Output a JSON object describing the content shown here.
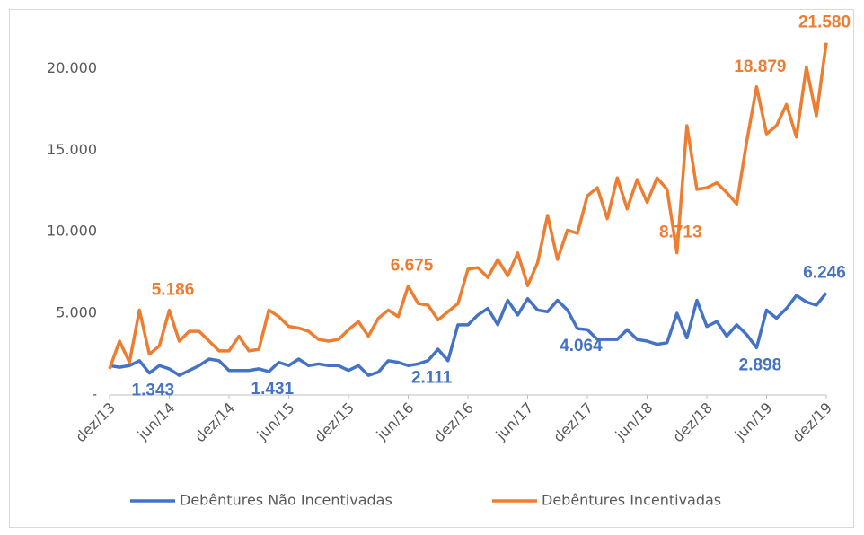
{
  "chart_data": {
    "type": "line",
    "categories": [
      "dez/13",
      null,
      null,
      null,
      null,
      null,
      "jun/14",
      null,
      null,
      null,
      null,
      null,
      "dez/14",
      null,
      null,
      null,
      null,
      null,
      "jun/15",
      null,
      null,
      null,
      null,
      null,
      "dez/15",
      null,
      null,
      null,
      null,
      null,
      "jun/16",
      null,
      null,
      null,
      null,
      null,
      "dez/16",
      null,
      null,
      null,
      null,
      null,
      "jun/17",
      null,
      null,
      null,
      null,
      null,
      "dez/17",
      null,
      null,
      null,
      null,
      null,
      "jun/18",
      null,
      null,
      null,
      null,
      null,
      "dez/18",
      null,
      null,
      null,
      null,
      null,
      "jun/19",
      null,
      null,
      null,
      null,
      null,
      "dez/19"
    ],
    "series": [
      {
        "name": "Debêntures Não Incentivadas",
        "color": "#4472c4",
        "values": [
          1800,
          1700,
          1800,
          2100,
          1343,
          1800,
          1600,
          1200,
          1500,
          1800,
          2200,
          2100,
          1500,
          1500,
          1500,
          1600,
          1431,
          2000,
          1800,
          2200,
          1800,
          1900,
          1800,
          1800,
          1500,
          1800,
          1200,
          1400,
          2100,
          2000,
          1800,
          1900,
          2111,
          2800,
          2100,
          4300,
          4300,
          4900,
          5300,
          4300,
          5800,
          4900,
          5900,
          5200,
          5100,
          5800,
          5200,
          4064,
          4000,
          3400,
          3400,
          3400,
          4000,
          3400,
          3300,
          3100,
          3200,
          5000,
          3500,
          5800,
          4200,
          4500,
          3600,
          4300,
          3700,
          2898,
          5200,
          4700,
          5300,
          6100,
          5700,
          5500,
          6246
        ],
        "value_labels": [
          null,
          null,
          null,
          null,
          "1.343",
          null,
          null,
          null,
          null,
          null,
          null,
          null,
          null,
          null,
          null,
          null,
          "1.431",
          null,
          null,
          null,
          null,
          null,
          null,
          null,
          null,
          null,
          null,
          null,
          null,
          null,
          null,
          null,
          "2.111",
          null,
          null,
          null,
          null,
          null,
          null,
          null,
          null,
          null,
          null,
          null,
          null,
          null,
          null,
          "4.064",
          null,
          null,
          null,
          null,
          null,
          null,
          null,
          null,
          null,
          null,
          null,
          null,
          null,
          null,
          null,
          null,
          null,
          "2.898",
          null,
          null,
          null,
          null,
          null,
          null,
          "6.246"
        ]
      },
      {
        "name": "Debêntures Incentivadas",
        "color": "#ed7d31",
        "values": [
          1600,
          3300,
          2000,
          5200,
          2500,
          3000,
          5186,
          3300,
          3900,
          3900,
          3300,
          2700,
          2700,
          3600,
          2700,
          2800,
          5200,
          4800,
          4200,
          4100,
          3900,
          3400,
          3300,
          3400,
          4000,
          4500,
          3600,
          4700,
          5200,
          4800,
          6675,
          5600,
          5500,
          4600,
          5100,
          5600,
          7700,
          7800,
          7200,
          8300,
          7300,
          8700,
          6700,
          8100,
          11000,
          8300,
          10100,
          9900,
          12200,
          12700,
          10800,
          13300,
          11400,
          13200,
          11800,
          13300,
          12600,
          8713,
          16500,
          12600,
          12700,
          13000,
          12400,
          11700,
          15500,
          18879,
          16000,
          16500,
          17800,
          15800,
          20100,
          17100,
          21580
        ],
        "value_labels": [
          null,
          null,
          null,
          null,
          null,
          null,
          "5.186",
          null,
          null,
          null,
          null,
          null,
          null,
          null,
          null,
          null,
          null,
          null,
          null,
          null,
          null,
          null,
          null,
          null,
          null,
          null,
          null,
          null,
          null,
          null,
          "6.675",
          null,
          null,
          null,
          null,
          null,
          null,
          null,
          null,
          null,
          null,
          null,
          null,
          null,
          null,
          null,
          null,
          null,
          null,
          null,
          null,
          null,
          null,
          null,
          null,
          null,
          null,
          "8.713",
          null,
          null,
          null,
          null,
          null,
          null,
          null,
          "18.879",
          null,
          null,
          null,
          null,
          null,
          null,
          "21.580"
        ]
      }
    ],
    "ylim": [
      0,
      22000
    ],
    "yticks": [
      {
        "value": 0,
        "label": "-"
      },
      {
        "value": 5000,
        "label": "5.000"
      },
      {
        "value": 10000,
        "label": "10.000"
      },
      {
        "value": 15000,
        "label": "15.000"
      },
      {
        "value": 20000,
        "label": "20.000"
      }
    ],
    "grid": false
  }
}
